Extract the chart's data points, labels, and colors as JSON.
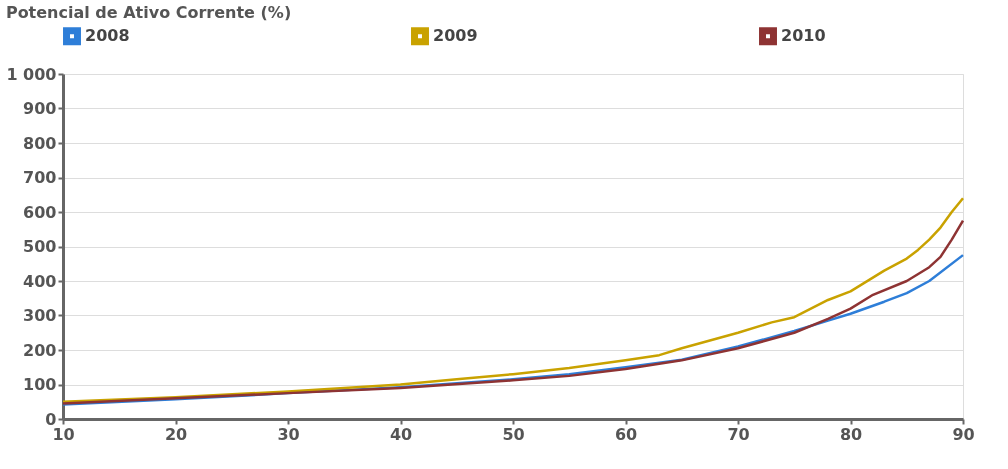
{
  "chart_data": {
    "type": "line",
    "title": "Potencial de Ativo Corrente (%)",
    "legend": "top",
    "grid": "y",
    "marker": "none",
    "line_style": "solid",
    "xlim": [
      10,
      90
    ],
    "xticks": [
      10,
      20,
      30,
      40,
      50,
      60,
      70,
      80,
      90
    ],
    "ylim": [
      0,
      1000
    ],
    "yticks": [
      0,
      100,
      200,
      300,
      400,
      500,
      600,
      700,
      800,
      900,
      {
        "value": 1000,
        "label": "1 000"
      }
    ],
    "series": [
      {
        "name": "2008",
        "color": "#2e7ed8",
        "x": [
          10,
          20,
          30,
          40,
          50,
          55,
          60,
          65,
          70,
          75,
          78,
          80,
          83,
          85,
          87,
          90
        ],
        "values": [
          42,
          57,
          75,
          92,
          115,
          130,
          150,
          172,
          210,
          255,
          285,
          305,
          340,
          365,
          400,
          475
        ]
      },
      {
        "name": "2009",
        "color": "#c9a200",
        "x": [
          10,
          20,
          30,
          40,
          45,
          50,
          55,
          60,
          63,
          65,
          70,
          73,
          75,
          78,
          80,
          83,
          85,
          86,
          87,
          88,
          89,
          90
        ],
        "values": [
          50,
          63,
          80,
          100,
          115,
          130,
          148,
          170,
          185,
          205,
          250,
          280,
          295,
          345,
          370,
          430,
          465,
          490,
          520,
          555,
          600,
          640
        ]
      },
      {
        "name": "2010",
        "color": "#8e3333",
        "x": [
          10,
          20,
          30,
          40,
          50,
          55,
          60,
          65,
          70,
          75,
          78,
          80,
          82,
          85,
          87,
          88,
          89,
          90
        ],
        "values": [
          45,
          60,
          75,
          90,
          112,
          125,
          145,
          170,
          205,
          250,
          290,
          320,
          360,
          400,
          440,
          470,
          520,
          575
        ]
      }
    ]
  }
}
